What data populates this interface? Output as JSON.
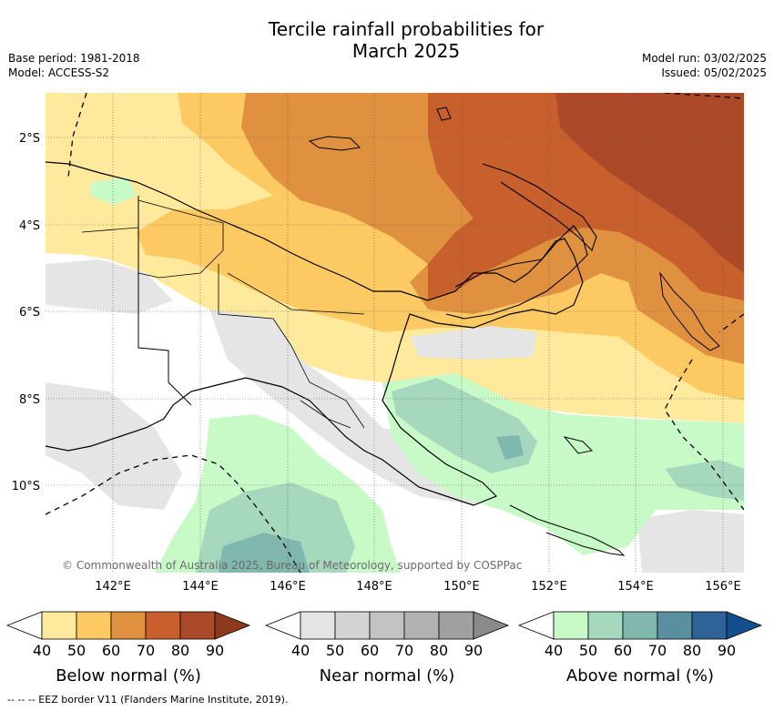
{
  "title_line1": "Tercile rainfall probabilities for",
  "title_line2": "March 2025",
  "base_period": "Base period: 1981-2018",
  "model": "Model: ACCESS-S2",
  "model_run": "Model run: 03/02/2025",
  "issued": "Issued: 05/02/2025",
  "copyright": "© Commonwealth of Australia 2025, Bureau of Meteorology, supported by COSPPac",
  "footer": "-- -- -- EEZ border V11 (Flanders Marine Institute, 2019).",
  "lon_ticks": [
    "142°E",
    "144°E",
    "146°E",
    "148°E",
    "150°E",
    "152°E",
    "154°E",
    "156°E"
  ],
  "lat_ticks": [
    "2°S",
    "4°S",
    "6°S",
    "8°S",
    "10°S"
  ],
  "colorbars": [
    {
      "name": "below",
      "label": "Below normal (%)",
      "ticks": [
        "40",
        "50",
        "60",
        "70",
        "80",
        "90"
      ],
      "colors": [
        "#ffffff",
        "#fee99c",
        "#fdc962",
        "#e0913f",
        "#c8602e",
        "#ac4928",
        "#8c3a1c"
      ]
    },
    {
      "name": "near",
      "label": "Near normal (%)",
      "ticks": [
        "40",
        "50",
        "60",
        "70",
        "80",
        "90"
      ],
      "colors": [
        "#ffffff",
        "#e5e5e5",
        "#d4d4d4",
        "#c3c3c3",
        "#b2b2b2",
        "#a0a0a0",
        "#8a8a8a"
      ]
    },
    {
      "name": "above",
      "label": "Above normal (%)",
      "ticks": [
        "40",
        "50",
        "60",
        "70",
        "80",
        "90"
      ],
      "colors": [
        "#ffffff",
        "#c8fac8",
        "#a6d8bd",
        "#80b8ae",
        "#5a8fa0",
        "#2f6296",
        "#134f8c"
      ]
    }
  ]
}
